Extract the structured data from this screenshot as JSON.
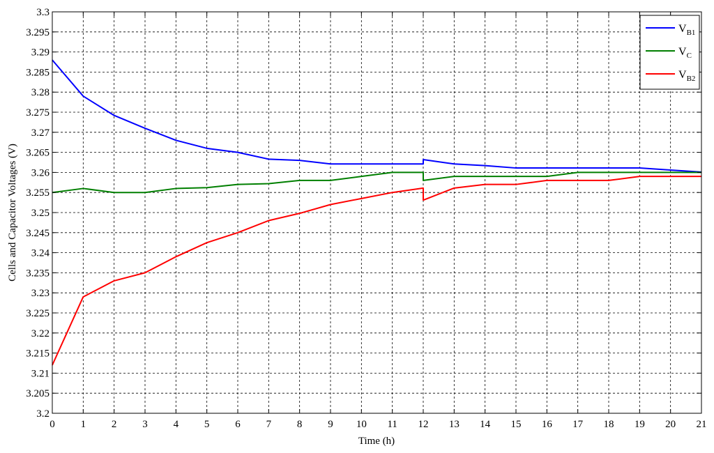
{
  "chart_data": {
    "type": "line",
    "title": "",
    "xlabel": "Time (h)",
    "ylabel": "Cells and Capacitor Voltages (V)",
    "xlim": [
      0,
      21
    ],
    "ylim": [
      3.2,
      3.3
    ],
    "x_ticks": [
      0,
      1,
      2,
      3,
      4,
      5,
      6,
      7,
      8,
      9,
      10,
      11,
      12,
      13,
      14,
      15,
      16,
      17,
      18,
      19,
      20,
      21
    ],
    "y_ticks": [
      3.2,
      3.205,
      3.21,
      3.215,
      3.22,
      3.225,
      3.23,
      3.235,
      3.24,
      3.245,
      3.25,
      3.255,
      3.26,
      3.265,
      3.27,
      3.275,
      3.28,
      3.285,
      3.29,
      3.295,
      3.3
    ],
    "x_tick_labels": [
      "0",
      "1",
      "2",
      "3",
      "4",
      "5",
      "6",
      "7",
      "8",
      "9",
      "10",
      "11",
      "12",
      "13",
      "14",
      "15",
      "16",
      "17",
      "18",
      "19",
      "20",
      "21"
    ],
    "y_tick_labels": [
      "3.2",
      "3.205",
      "3.21",
      "3.215",
      "3.22",
      "3.225",
      "3.23",
      "3.235",
      "3.24",
      "3.245",
      "3.25",
      "3.255",
      "3.26",
      "3.265",
      "3.27",
      "3.275",
      "3.28",
      "3.285",
      "3.29",
      "3.295",
      "3.3"
    ],
    "grid": true,
    "legend_position": "top-right",
    "series": [
      {
        "name_main": "V",
        "name_sub": "B1",
        "color": "#0000ff",
        "x": [
          0,
          1,
          2,
          3,
          4,
          5,
          6,
          7,
          8,
          9,
          10,
          11,
          12,
          12,
          13,
          14,
          15,
          16,
          17,
          18,
          19,
          20,
          21
        ],
        "y": [
          3.288,
          3.279,
          3.2742,
          3.271,
          3.268,
          3.266,
          3.265,
          3.2633,
          3.263,
          3.2621,
          3.2621,
          3.2621,
          3.2621,
          3.2632,
          3.2621,
          3.2617,
          3.2611,
          3.2611,
          3.2611,
          3.2611,
          3.2611,
          3.2606,
          3.2601
        ]
      },
      {
        "name_main": "V",
        "name_sub": "C",
        "color": "#007f00",
        "x": [
          0,
          1,
          2,
          3,
          4,
          5,
          6,
          7,
          8,
          9,
          10,
          11,
          12,
          12,
          13,
          14,
          15,
          16,
          17,
          18,
          19,
          20,
          21
        ],
        "y": [
          3.255,
          3.256,
          3.255,
          3.255,
          3.256,
          3.2562,
          3.257,
          3.2572,
          3.258,
          3.258,
          3.259,
          3.26,
          3.26,
          3.258,
          3.259,
          3.259,
          3.259,
          3.259,
          3.26,
          3.26,
          3.26,
          3.26,
          3.26
        ]
      },
      {
        "name_main": "V",
        "name_sub": "B2",
        "color": "#ff0000",
        "x": [
          0,
          1,
          2,
          3,
          4,
          5,
          6,
          7,
          8,
          9,
          10,
          11,
          12,
          12,
          13,
          14,
          15,
          16,
          17,
          18,
          19,
          20,
          21
        ],
        "y": [
          3.212,
          3.229,
          3.233,
          3.235,
          3.239,
          3.2425,
          3.245,
          3.248,
          3.2498,
          3.252,
          3.2535,
          3.255,
          3.2561,
          3.2531,
          3.2561,
          3.257,
          3.257,
          3.258,
          3.258,
          3.258,
          3.259,
          3.259,
          3.259
        ]
      }
    ]
  }
}
